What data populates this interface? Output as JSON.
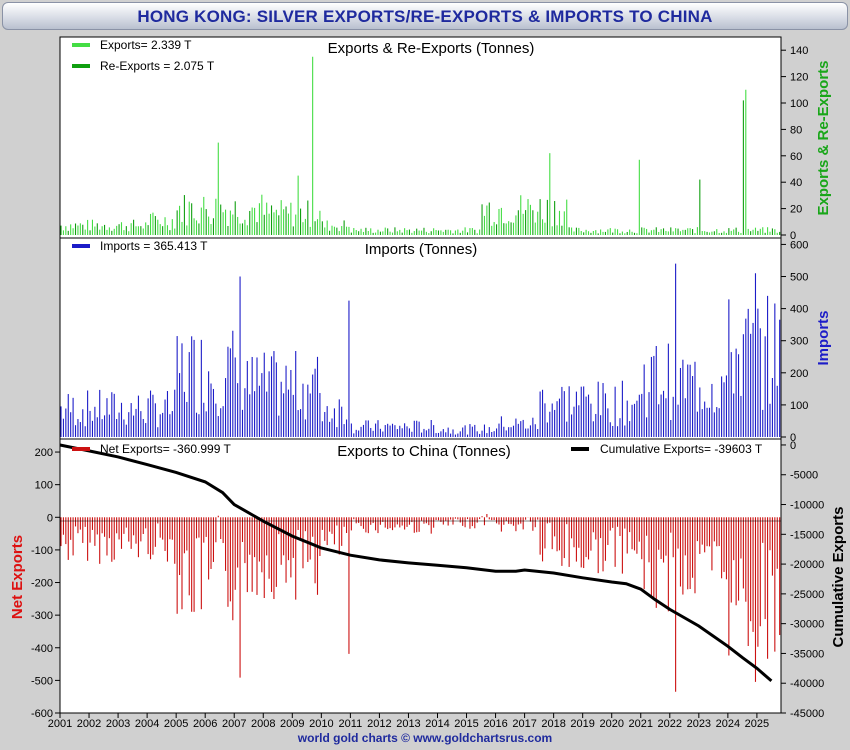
{
  "title": "HONG KONG: SILVER EXPORTS/RE-EXPORTS & IMPORTS TO CHINA",
  "footer": "world gold charts © www.goldchartsrus.com",
  "colors": {
    "exports": "#44dd44",
    "reexports": "#109f10",
    "imports": "#1c1cc8",
    "net": "#cc1111",
    "cumulative": "#000000",
    "title": "#1f2a9e",
    "right_label_green": "#19a619",
    "right_label_blue": "#1c1cc8",
    "left_label_red": "#dd1111"
  },
  "chart_data": [
    {
      "type": "bar",
      "title": "Exports & Re-Exports (Tonnes)",
      "ylabel": "Exports & Re-Exports",
      "ylim": [
        0,
        150
      ],
      "yticks": [
        0,
        20,
        40,
        60,
        80,
        100,
        120,
        140
      ],
      "series": [
        {
          "name": "Exports",
          "legend": "Exports= 2.339 T",
          "last_value": 2.339
        },
        {
          "name": "Re-Exports",
          "legend": "Re-Exports = 2.075 T",
          "last_value": 2.075
        }
      ],
      "highlights": [
        {
          "year": 2006.4,
          "value": 70
        },
        {
          "year": 2009.7,
          "value": 135
        },
        {
          "year": 2009.2,
          "value": 45
        },
        {
          "year": 2017.8,
          "value": 62
        },
        {
          "year": 2020.9,
          "value": 57
        },
        {
          "year": 2023.0,
          "value": 42
        },
        {
          "year": 2024.5,
          "value": 102
        },
        {
          "year": 2024.6,
          "value": 110
        }
      ]
    },
    {
      "type": "bar",
      "title": "Imports (Tonnes)",
      "ylabel": "Imports",
      "ylim": [
        0,
        620
      ],
      "yticks": [
        0,
        100,
        200,
        300,
        400,
        500,
        600
      ],
      "series": [
        {
          "name": "Imports",
          "legend": "Imports = 365.413 T",
          "last_value": 365.413
        }
      ],
      "highlights": [
        {
          "year": 2007.2,
          "value": 500
        },
        {
          "year": 2010.9,
          "value": 425
        },
        {
          "year": 2022.2,
          "value": 540
        },
        {
          "year": 2024.9,
          "value": 510
        }
      ]
    },
    {
      "type": "bar+line",
      "title": "Exports to China (Tonnes)",
      "ylabel_left": "Net Exports",
      "ylabel_right": "Cumulative Exports",
      "ylim_left": [
        -600,
        240
      ],
      "yticks_left": [
        -600,
        -500,
        -400,
        -300,
        -200,
        -100,
        0,
        100,
        200
      ],
      "ylim_right": [
        -45000,
        1000
      ],
      "yticks_right": [
        -45000,
        -40000,
        -35000,
        -30000,
        -25000,
        -20000,
        -15000,
        -10000,
        -5000,
        0
      ],
      "series": [
        {
          "name": "Net Exports",
          "legend": "Net Exports= -360.999 T",
          "last_value": -360.999
        },
        {
          "name": "Cumulative Exports",
          "legend": "Cumulative Exports= -39603 T",
          "last_value": -39603
        }
      ],
      "cumulative_path": [
        [
          2001.0,
          0
        ],
        [
          2002.0,
          -1000
        ],
        [
          2003.0,
          -2000
        ],
        [
          2004.0,
          -3300
        ],
        [
          2005.0,
          -4600
        ],
        [
          2006.0,
          -6200
        ],
        [
          2006.6,
          -8000
        ],
        [
          2007.0,
          -10000
        ],
        [
          2008.0,
          -12800
        ],
        [
          2009.0,
          -15300
        ],
        [
          2009.6,
          -16500
        ],
        [
          2010.0,
          -17300
        ],
        [
          2011.0,
          -18500
        ],
        [
          2012.0,
          -19300
        ],
        [
          2013.0,
          -19800
        ],
        [
          2014.0,
          -20200
        ],
        [
          2015.0,
          -20600
        ],
        [
          2016.0,
          -21200
        ],
        [
          2016.7,
          -21200
        ],
        [
          2017.0,
          -21000
        ],
        [
          2018.0,
          -21500
        ],
        [
          2019.0,
          -22300
        ],
        [
          2020.0,
          -23000
        ],
        [
          2020.5,
          -23300
        ],
        [
          2021.0,
          -24200
        ],
        [
          2021.5,
          -26000
        ],
        [
          2022.0,
          -27600
        ],
        [
          2023.0,
          -30400
        ],
        [
          2024.0,
          -33800
        ],
        [
          2024.5,
          -35700
        ],
        [
          2025.0,
          -37500
        ],
        [
          2025.5,
          -39603
        ]
      ]
    }
  ],
  "x_axis": {
    "start": 2001,
    "end": 2025.83,
    "tick_labels": [
      "2001",
      "2002",
      "2003",
      "2004",
      "2005",
      "2006",
      "2007",
      "2008",
      "2009",
      "2010",
      "2011",
      "2012",
      "2013",
      "2014",
      "2015",
      "2016",
      "2017",
      "2018",
      "2019",
      "2020",
      "2021",
      "2022",
      "2023",
      "2024",
      "2025"
    ]
  }
}
